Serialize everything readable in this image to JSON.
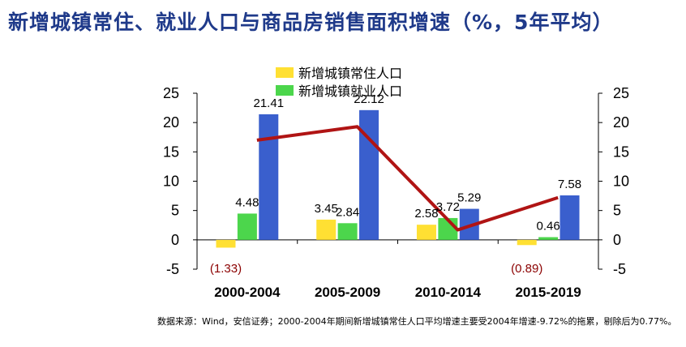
{
  "title": "新增城镇常住、就业人口与商品房销售面积增速（%，5年平均）",
  "source": "数据来源：Wind，安信证券；2000-2004年期间新增城镇常住人口平均增速主要受2004年增速-9.72%的拖累，剔除后为0.77%。",
  "colors": {
    "title": "#1f3a8a",
    "series1": "#ffe033",
    "series2": "#4cd64c",
    "series3": "#3a5fcd",
    "line": "#b01414",
    "negative_label": "#8b0000"
  },
  "chart_data": {
    "type": "bar",
    "categories": [
      "2000-2004",
      "2005-2009",
      "2010-2014",
      "2015-2019"
    ],
    "ylim": [
      -5,
      25
    ],
    "yticks": [
      -5,
      0,
      5,
      10,
      15,
      20,
      25
    ],
    "ytick_labels": [
      "-5",
      "0",
      "5",
      "10",
      "15",
      "20",
      "25"
    ],
    "right_ylim": [
      -5,
      25
    ],
    "series": [
      {
        "name": "新增城镇常住人口",
        "values": [
          -1.33,
          3.45,
          2.58,
          -0.89
        ],
        "labels": [
          "(1.33)",
          "3.45",
          "2.58",
          "(0.89)"
        ]
      },
      {
        "name": "新增城镇就业人口",
        "values": [
          4.48,
          2.84,
          3.72,
          0.46
        ],
        "labels": [
          "4.48",
          "2.84",
          "3.72",
          "0.46"
        ]
      },
      {
        "name": "",
        "values": [
          21.41,
          22.12,
          5.29,
          7.58
        ],
        "labels": [
          "21.41",
          "22.12",
          "5.29",
          "7.58"
        ]
      },
      {
        "name": "",
        "type": "line",
        "values": [
          17,
          19.3,
          1.7,
          7.2
        ]
      }
    ]
  }
}
